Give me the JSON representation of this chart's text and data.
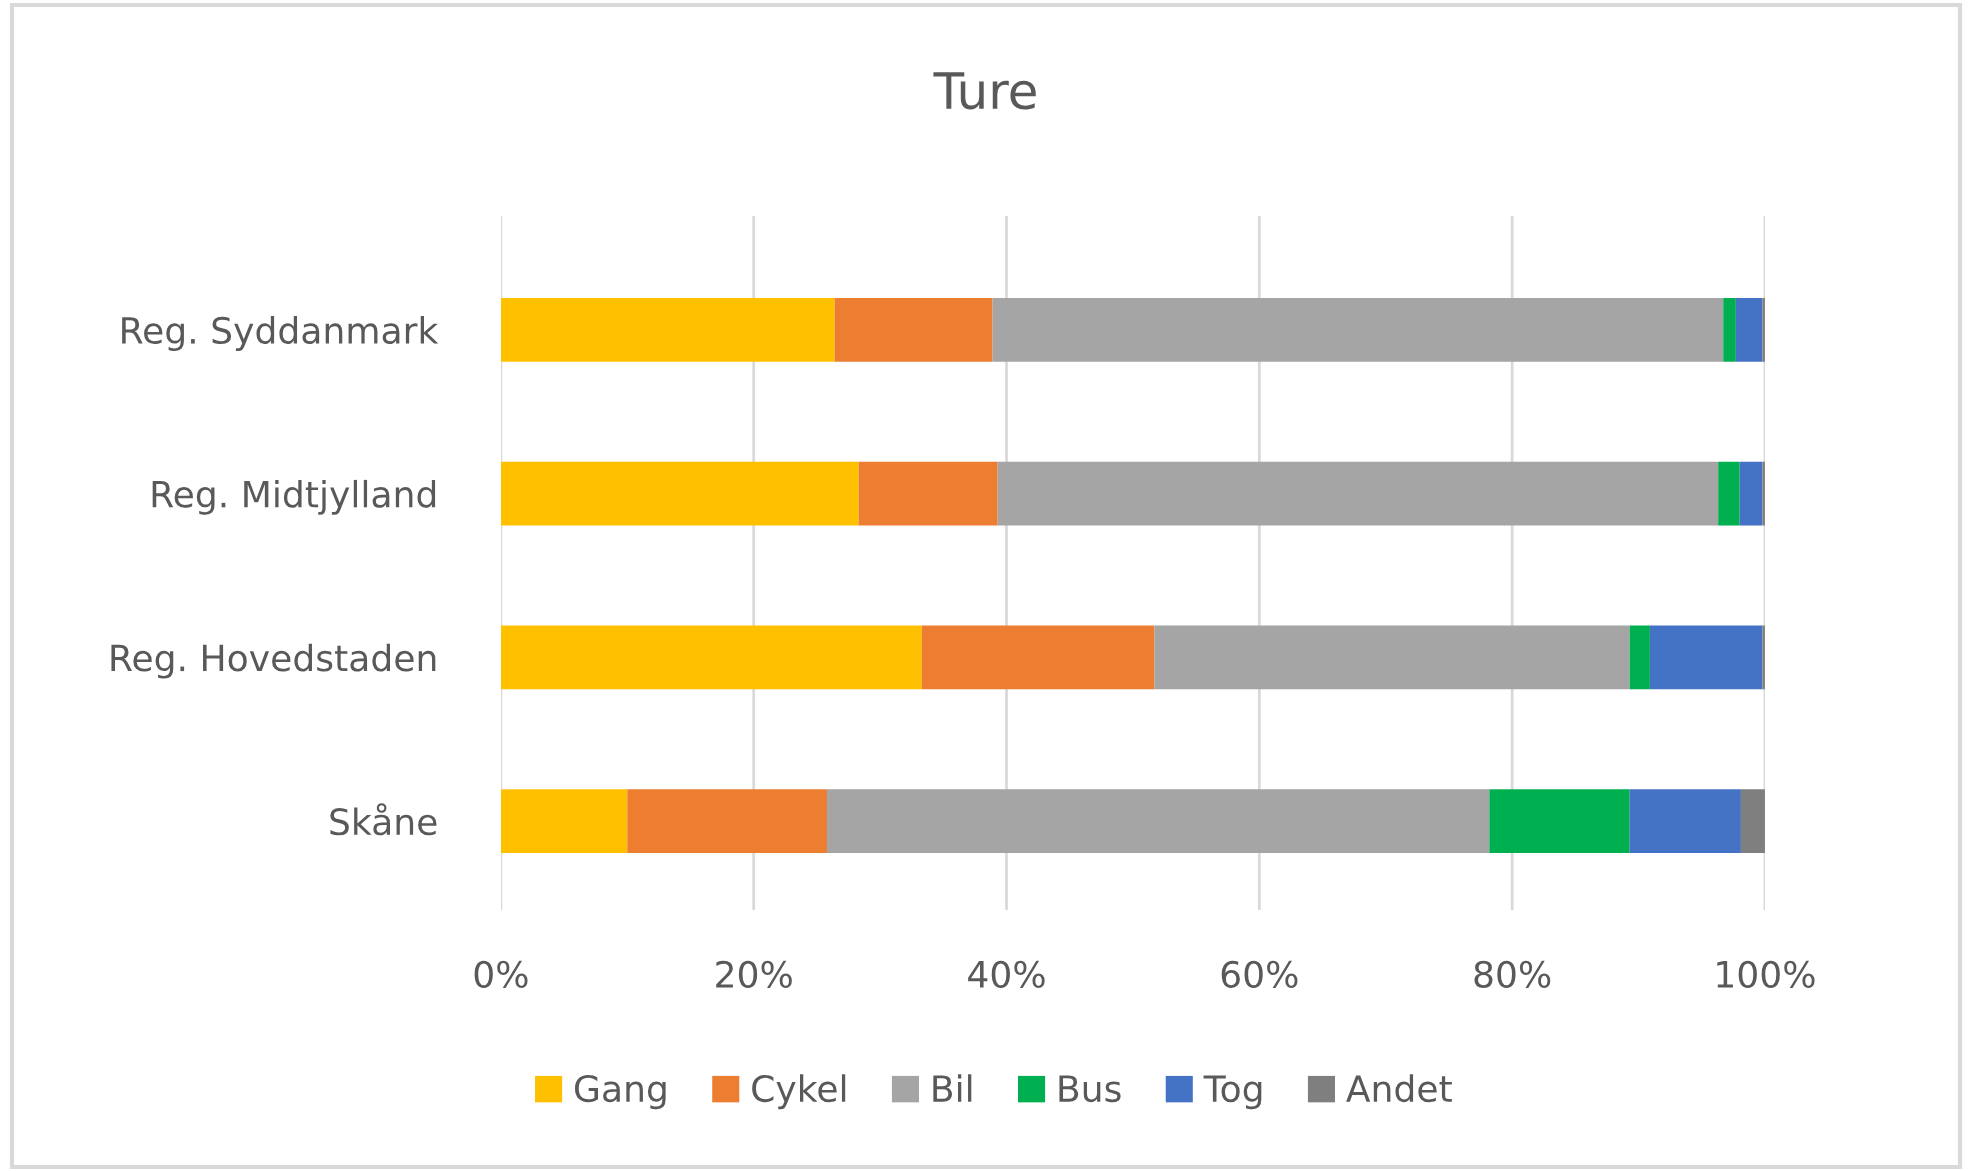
{
  "chart_data": {
    "type": "bar",
    "orientation": "horizontal",
    "stacked": true,
    "title": "Ture",
    "categories": [
      "Reg. Syddanmark",
      "Reg. Midtjylland",
      "Reg. Hovedstaden",
      "Skåne"
    ],
    "series": [
      {
        "name": "Gang",
        "color": "#ffc000",
        "values": [
          26.4,
          28.3,
          33.3,
          10.0
        ]
      },
      {
        "name": "Cykel",
        "color": "#ed7d31",
        "values": [
          12.5,
          11.0,
          18.4,
          15.8
        ]
      },
      {
        "name": "Bil",
        "color": "#a5a5a5",
        "values": [
          57.8,
          57.0,
          37.6,
          52.4
        ]
      },
      {
        "name": "Bus",
        "color": "#00b050",
        "values": [
          1.0,
          1.7,
          1.6,
          11.1
        ]
      },
      {
        "name": "Tog",
        "color": "#4472c4",
        "values": [
          2.1,
          1.8,
          8.9,
          8.8
        ]
      },
      {
        "name": "Andet",
        "color": "#7f7f7f",
        "values": [
          0.2,
          0.2,
          0.2,
          1.9
        ]
      }
    ],
    "xlim": [
      0,
      100
    ],
    "xticks": [
      {
        "value": 0,
        "label": "0%"
      },
      {
        "value": 20,
        "label": "20%"
      },
      {
        "value": 40,
        "label": "40%"
      },
      {
        "value": 60,
        "label": "60%"
      },
      {
        "value": 80,
        "label": "80%"
      },
      {
        "value": 100,
        "label": "100%"
      }
    ],
    "grid": "x",
    "legend": "bottom"
  }
}
